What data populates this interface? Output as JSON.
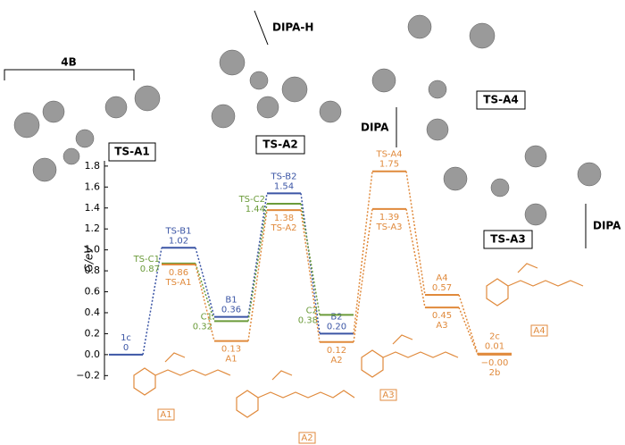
{
  "chart_data": {
    "type": "energy-levels",
    "ylabel": "G/eV",
    "ylim": [
      -0.24,
      1.85
    ],
    "yticks": [
      {
        "value": -0.2,
        "label": "−0.2"
      },
      {
        "value": 0,
        "label": "0.0"
      },
      0.2,
      0.4,
      0.6,
      0.8,
      {
        "value": 1,
        "label": "1.0"
      },
      1.2,
      1.4,
      1.6,
      1.8
    ],
    "categories": [
      null,
      null,
      null,
      null,
      null,
      null,
      null,
      null
    ],
    "series": [
      {
        "color": "#3b55a5",
        "label_side": "above",
        "values": [
          0,
          1.02,
          0.36,
          1.54,
          0.2,
          null,
          null,
          null
        ],
        "value_labels": [
          "0",
          "1.02",
          "0.36",
          "1.54",
          "0.20",
          null,
          null,
          null
        ],
        "point_labels": [
          "1c",
          "TS-B1",
          "B1",
          "TS-B2",
          "B2",
          null,
          null,
          null
        ]
      },
      {
        "color": "#6b9b3a",
        "label_side": "left",
        "values": [
          null,
          0.87,
          0.32,
          1.44,
          0.38,
          null,
          null,
          null
        ],
        "value_labels": [
          null,
          "0.87",
          "0.32",
          "1.44",
          "0.38",
          null,
          null,
          null
        ],
        "point_labels": [
          null,
          "TS-C1",
          "C1",
          "TS-C2",
          "C2",
          null,
          null,
          null
        ]
      },
      {
        "color": "#e08a3c",
        "label_side": "below",
        "values": [
          null,
          0.86,
          0.13,
          1.38,
          0.12,
          1.39,
          0.45,
          0
        ],
        "value_labels": [
          null,
          "0.86",
          "0.13",
          "1.38",
          "0.12",
          "1.39",
          "0.45",
          "−0.00"
        ],
        "point_labels": [
          null,
          "TS-A1",
          "A1",
          "TS-A2",
          "A2",
          "TS-A3",
          "A3",
          "2b"
        ]
      },
      {
        "color": "#e08a3c",
        "label_side": "above",
        "branch_from": 4,
        "values": [
          null,
          null,
          null,
          null,
          null,
          1.75,
          0.57,
          0.01
        ],
        "value_labels": [
          null,
          null,
          null,
          null,
          null,
          "1.75",
          "0.57",
          "0.01"
        ],
        "point_labels": [
          null,
          null,
          null,
          null,
          null,
          "TS-A4",
          "A4",
          "2c"
        ]
      }
    ]
  },
  "annotations": {
    "bracket_4b": "4B",
    "ts_a1": "TS-A1",
    "dipa_h": "DIPA-H",
    "ts_a2": "TS-A2",
    "ts_a4": "TS-A4",
    "dipa_1": "DIPA",
    "ts_a3": "TS-A3",
    "dipa_2": "DIPA",
    "struct_a1": "A1",
    "struct_a2": "A2",
    "struct_a3": "A3",
    "struct_a4": "A4"
  }
}
